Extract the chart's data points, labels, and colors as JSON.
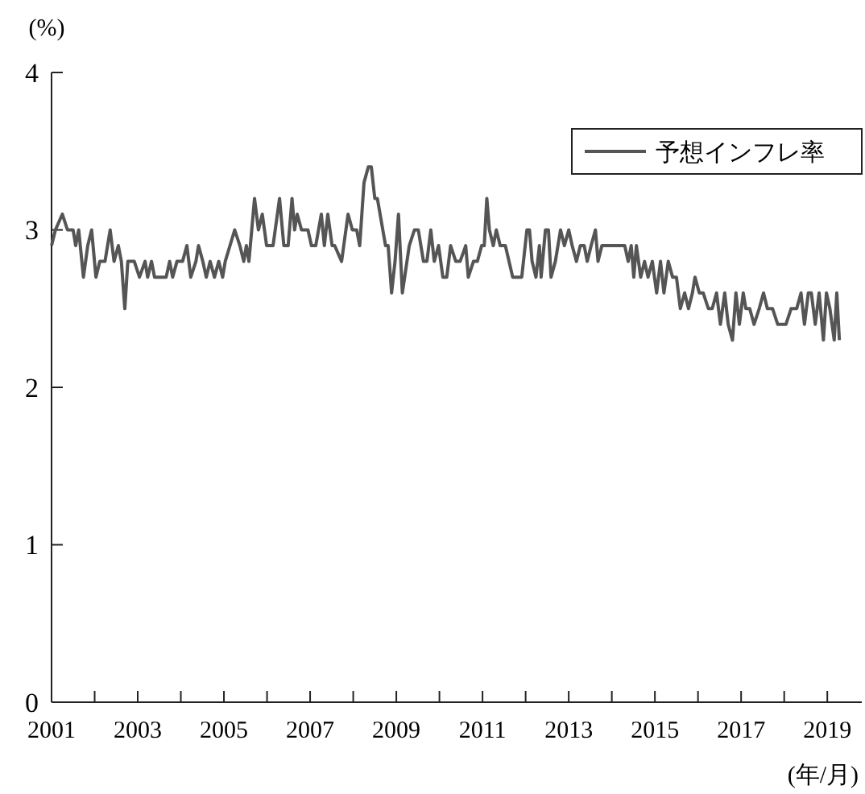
{
  "chart_data": {
    "type": "line",
    "xlabel": "(年/月)",
    "ylabel": "(%)",
    "x": [
      2001.0,
      2001.09,
      2001.25,
      2001.37,
      2001.5,
      2001.56,
      2001.63,
      2001.74,
      2001.84,
      2001.93,
      2002.03,
      2002.12,
      2002.24,
      2002.36,
      2002.45,
      2002.55,
      2002.62,
      2002.7,
      2002.77,
      2002.92,
      2003.04,
      2003.17,
      2003.23,
      2003.32,
      2003.39,
      2003.48,
      2003.66,
      2003.74,
      2003.81,
      2003.91,
      2004.04,
      2004.14,
      2004.23,
      2004.35,
      2004.41,
      2004.51,
      2004.59,
      2004.68,
      2004.78,
      2004.88,
      2004.97,
      2005.03,
      2005.25,
      2005.37,
      2005.46,
      2005.52,
      2005.58,
      2005.71,
      2005.8,
      2005.89,
      2005.99,
      2006.14,
      2006.29,
      2006.39,
      2006.49,
      2006.58,
      2006.64,
      2006.7,
      2006.8,
      2006.95,
      2007.03,
      2007.13,
      2007.26,
      2007.33,
      2007.41,
      2007.51,
      2007.57,
      2007.73,
      2007.88,
      2007.98,
      2008.08,
      2008.15,
      2008.25,
      2008.35,
      2008.42,
      2008.5,
      2008.56,
      2008.75,
      2008.81,
      2008.89,
      2008.97,
      2009.05,
      2009.14,
      2009.3,
      2009.42,
      2009.51,
      2009.63,
      2009.71,
      2009.8,
      2009.88,
      2009.98,
      2010.08,
      2010.17,
      2010.26,
      2010.38,
      2010.48,
      2010.61,
      2010.67,
      2010.79,
      2010.88,
      2010.98,
      2011.04,
      2011.1,
      2011.16,
      2011.25,
      2011.32,
      2011.41,
      2011.53,
      2011.7,
      2011.91,
      2012.03,
      2012.09,
      2012.15,
      2012.24,
      2012.32,
      2012.36,
      2012.46,
      2012.53,
      2012.59,
      2012.69,
      2012.81,
      2012.9,
      2013.0,
      2013.08,
      2013.18,
      2013.27,
      2013.36,
      2013.43,
      2013.52,
      2013.62,
      2013.68,
      2013.77,
      2013.85,
      2013.95,
      2014.07,
      2014.2,
      2014.3,
      2014.38,
      2014.45,
      2014.51,
      2014.57,
      2014.67,
      2014.76,
      2014.84,
      2014.94,
      2015.04,
      2015.13,
      2015.21,
      2015.31,
      2015.41,
      2015.5,
      2015.59,
      2015.69,
      2015.78,
      2015.87,
      2015.93,
      2016.03,
      2016.12,
      2016.24,
      2016.33,
      2016.43,
      2016.52,
      2016.62,
      2016.7,
      2016.8,
      2016.88,
      2016.96,
      2017.05,
      2017.11,
      2017.2,
      2017.3,
      2017.42,
      2017.52,
      2017.61,
      2017.73,
      2017.85,
      2018.04,
      2018.16,
      2018.29,
      2018.39,
      2018.47,
      2018.56,
      2018.63,
      2018.72,
      2018.81,
      2018.91,
      2018.98,
      2019.06,
      2019.16,
      2019.22,
      2019.28
    ],
    "series": [
      {
        "name": "予想インフレ率",
        "color": "#555555",
        "values": [
          2.9,
          3.0,
          3.1,
          3.0,
          3.0,
          2.9,
          3.0,
          2.7,
          2.9,
          3.0,
          2.7,
          2.8,
          2.8,
          3.0,
          2.8,
          2.9,
          2.8,
          2.5,
          2.8,
          2.8,
          2.7,
          2.8,
          2.7,
          2.8,
          2.7,
          2.7,
          2.7,
          2.8,
          2.7,
          2.8,
          2.8,
          2.9,
          2.7,
          2.8,
          2.9,
          2.8,
          2.7,
          2.8,
          2.7,
          2.8,
          2.7,
          2.8,
          3.0,
          2.9,
          2.8,
          2.9,
          2.8,
          3.2,
          3.0,
          3.1,
          2.9,
          2.9,
          3.2,
          2.9,
          2.9,
          3.2,
          3.0,
          3.1,
          3.0,
          3.0,
          2.9,
          2.9,
          3.1,
          2.9,
          3.1,
          2.9,
          2.9,
          2.8,
          3.1,
          3.0,
          3.0,
          2.9,
          3.3,
          3.4,
          3.4,
          3.2,
          3.2,
          2.9,
          2.9,
          2.6,
          2.8,
          3.1,
          2.6,
          2.9,
          3.0,
          3.0,
          2.8,
          2.8,
          3.0,
          2.8,
          2.9,
          2.7,
          2.7,
          2.9,
          2.8,
          2.8,
          2.9,
          2.7,
          2.8,
          2.8,
          2.9,
          2.9,
          3.2,
          3.0,
          2.9,
          3.0,
          2.9,
          2.9,
          2.7,
          2.7,
          3.0,
          3.0,
          2.8,
          2.7,
          2.9,
          2.7,
          3.0,
          3.0,
          2.7,
          2.8,
          3.0,
          2.9,
          3.0,
          2.9,
          2.8,
          2.9,
          2.9,
          2.8,
          2.9,
          3.0,
          2.8,
          2.9,
          2.9,
          2.9,
          2.9,
          2.9,
          2.9,
          2.8,
          2.9,
          2.7,
          2.9,
          2.7,
          2.8,
          2.7,
          2.8,
          2.6,
          2.8,
          2.6,
          2.8,
          2.7,
          2.7,
          2.5,
          2.6,
          2.5,
          2.6,
          2.7,
          2.6,
          2.6,
          2.5,
          2.5,
          2.6,
          2.4,
          2.6,
          2.4,
          2.3,
          2.6,
          2.4,
          2.6,
          2.5,
          2.5,
          2.4,
          2.5,
          2.6,
          2.5,
          2.5,
          2.4,
          2.4,
          2.5,
          2.5,
          2.6,
          2.4,
          2.6,
          2.6,
          2.4,
          2.6,
          2.3,
          2.6,
          2.5,
          2.3,
          2.6,
          2.3
        ]
      }
    ],
    "xlim": [
      2001,
      2019.8
    ],
    "xticks": [
      2001,
      {
        "value": 2002,
        "label": null
      },
      2003,
      {
        "value": 2004,
        "label": null
      },
      2005,
      {
        "value": 2006,
        "label": null
      },
      2007,
      {
        "value": 2008,
        "label": null
      },
      2009,
      {
        "value": 2010,
        "label": null
      },
      2011,
      {
        "value": 2012,
        "label": null
      },
      2013,
      {
        "value": 2014,
        "label": null
      },
      2015,
      {
        "value": 2016,
        "label": null
      },
      2017,
      {
        "value": 2018,
        "label": null
      },
      2019
    ],
    "ylim": [
      0,
      4
    ],
    "yticks": [
      0,
      1,
      2,
      3,
      4
    ],
    "grid": false,
    "legend": "top right",
    "marker": "none",
    "line_style": "solid"
  }
}
